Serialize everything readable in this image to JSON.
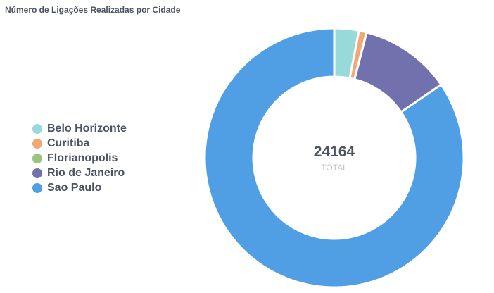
{
  "chart_data": {
    "type": "pie",
    "title": "Número de Ligações Realizadas por Cidade",
    "categories": [
      "Belo Horizonte",
      "Curitiba",
      "Florianopolis",
      "Rio de Janeiro",
      "Sao Paulo"
    ],
    "values": [
      740,
      230,
      5,
      2760,
      20429
    ],
    "colors": [
      "#98d9d9",
      "#f2a775",
      "#98c47d",
      "#7172ad",
      "#509ee3"
    ],
    "legend_position": "left",
    "center": {
      "value": "24164",
      "label": "TOTAL"
    }
  }
}
